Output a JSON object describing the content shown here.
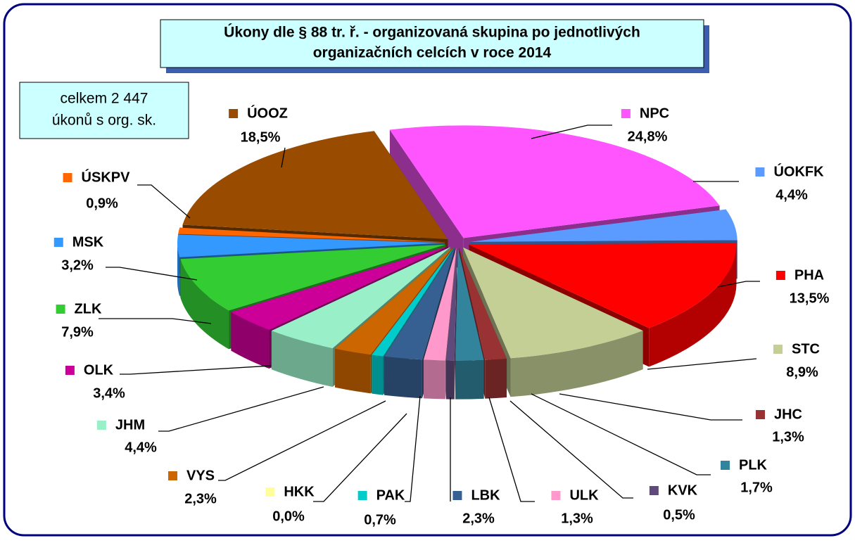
{
  "chart_data": {
    "type": "pie3d",
    "title": [
      "Úkony dle § 88 tr. ř. - organizovaná skupina po jednotlivých",
      "organizačních celcích v roce 2014"
    ],
    "annotation": [
      "celkem 2 447",
      "úkonů s org. sk."
    ],
    "categories": [
      "NPC",
      "ÚOKFK",
      "PHA",
      "STC",
      "JHC",
      "PLK",
      "KVK",
      "ULK",
      "LBK",
      "PAK",
      "HKK",
      "VYS",
      "JHM",
      "OLK",
      "ZLK",
      "MSK",
      "ÚSKPV",
      "ÚOOZ"
    ],
    "values": [
      24.8,
      4.4,
      13.5,
      8.9,
      1.3,
      1.7,
      0.5,
      1.3,
      2.3,
      0.7,
      0.0,
      2.3,
      4.4,
      3.4,
      7.9,
      3.2,
      0.9,
      18.5
    ],
    "value_labels": [
      "24,8%",
      "4,4%",
      "13,5%",
      "8,9%",
      "1,3%",
      "1,7%",
      "0,5%",
      "1,3%",
      "2,3%",
      "0,7%",
      "0,0%",
      "2,3%",
      "4,4%",
      "3,4%",
      "7,9%",
      "3,2%",
      "0,9%",
      "18,5%"
    ],
    "colors": [
      "#ff55ff",
      "#5b9bff",
      "#ff0000",
      "#c4cf96",
      "#993333",
      "#31849b",
      "#604a7b",
      "#ff99cc",
      "#366092",
      "#00cccc",
      "#ffff99",
      "#cc6600",
      "#99f0c8",
      "#cc0099",
      "#33cc33",
      "#3399ff",
      "#ff6600",
      "#994c00"
    ]
  }
}
